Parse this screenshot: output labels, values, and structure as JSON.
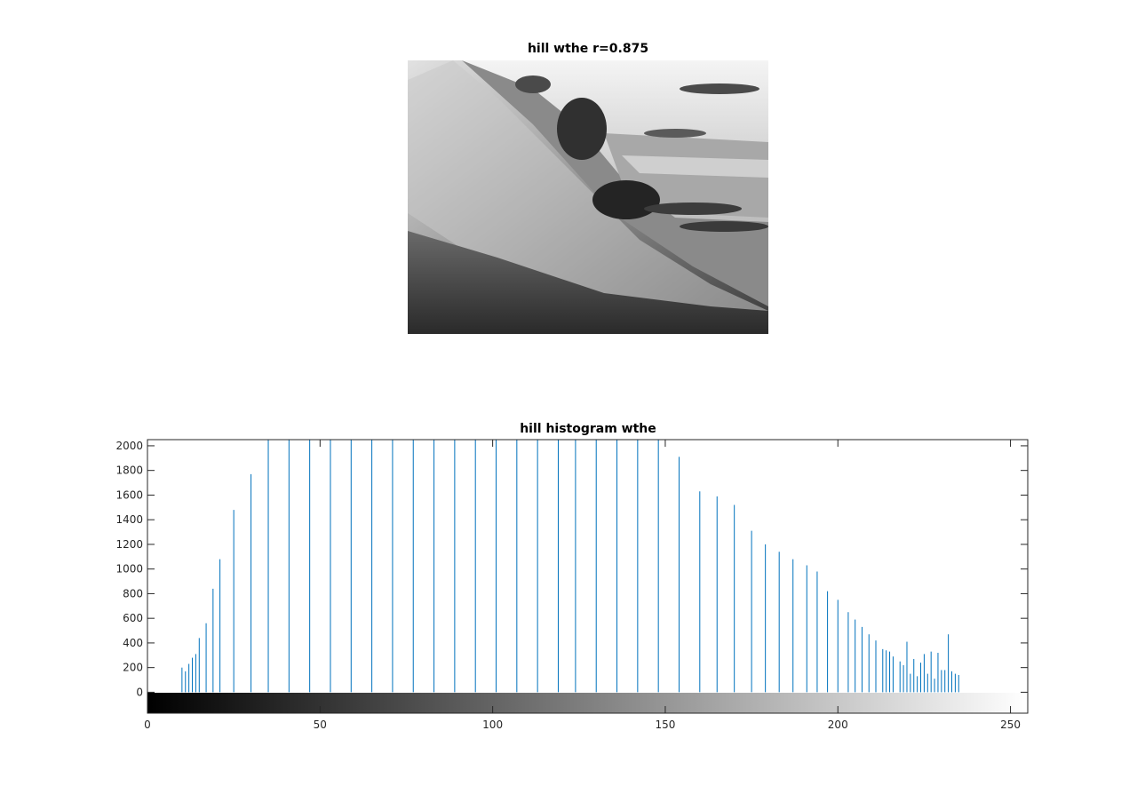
{
  "image_panel": {
    "title": "hill wthe r=0.875",
    "content": "grayscale hillside landscape photograph"
  },
  "chart_data": {
    "type": "bar",
    "title": "hill histogram wthe",
    "xlabel": "",
    "ylabel": "",
    "xlim": [
      0,
      255
    ],
    "ylim": [
      -170,
      2050
    ],
    "x_ticks": [
      0,
      50,
      100,
      150,
      200,
      250
    ],
    "y_ticks": [
      0,
      200,
      400,
      600,
      800,
      1000,
      1200,
      1400,
      1600,
      1800,
      2000
    ],
    "grid": false,
    "colorbar": "grayscale 0-255 below axis",
    "bar_color": "#0072BD",
    "x": [
      10,
      11,
      12,
      13,
      14,
      15,
      17,
      19,
      21,
      25,
      30,
      35,
      41,
      47,
      53,
      59,
      65,
      71,
      77,
      83,
      89,
      95,
      101,
      107,
      113,
      119,
      124,
      130,
      136,
      142,
      148,
      154,
      160,
      165,
      170,
      175,
      179,
      183,
      187,
      191,
      194,
      197,
      200,
      203,
      205,
      207,
      209,
      211,
      213,
      214,
      215,
      216,
      218,
      219,
      220,
      221,
      222,
      223,
      224,
      225,
      226,
      227,
      228,
      229,
      230,
      231,
      232,
      233,
      234,
      235
    ],
    "values": [
      200,
      170,
      230,
      280,
      310,
      440,
      560,
      840,
      1080,
      1480,
      1770,
      2050,
      2050,
      2050,
      2050,
      2050,
      2050,
      2050,
      2050,
      2050,
      2050,
      2050,
      2050,
      2050,
      2050,
      2050,
      2050,
      2050,
      2050,
      2050,
      2050,
      1910,
      1630,
      1590,
      1520,
      1310,
      1200,
      1140,
      1080,
      1030,
      980,
      820,
      750,
      650,
      590,
      530,
      470,
      420,
      350,
      340,
      330,
      290,
      250,
      220,
      410,
      150,
      270,
      130,
      240,
      310,
      150,
      330,
      110,
      320,
      180,
      180,
      470,
      170,
      150,
      140
    ]
  }
}
